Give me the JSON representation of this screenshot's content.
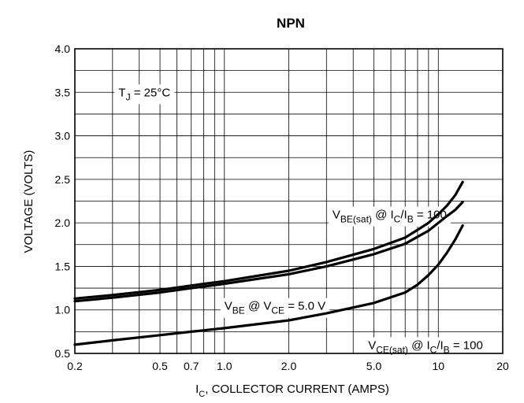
{
  "chart_data": {
    "type": "line",
    "title": "NPN",
    "xlabel": {
      "main": "I",
      "sub": "C",
      "rest": ", COLLECTOR CURRENT (AMPS)"
    },
    "ylabel": "VOLTAGE (VOLTS)",
    "x_scale": "log",
    "xlim": [
      0.2,
      20
    ],
    "ylim": [
      0.5,
      4.0
    ],
    "grid": true,
    "x_ticks": [
      {
        "value": 0.2,
        "label": "0.2"
      },
      {
        "value": 0.5,
        "label": "0.5"
      },
      {
        "value": 0.7,
        "label": "0.7"
      },
      {
        "value": 1.0,
        "label": "1.0"
      },
      {
        "value": 2.0,
        "label": "2.0"
      },
      {
        "value": 5.0,
        "label": "5.0"
      },
      {
        "value": 10,
        "label": "10"
      },
      {
        "value": 20,
        "label": "20"
      }
    ],
    "y_ticks": [
      {
        "value": 0.5,
        "label": "0.5"
      },
      {
        "value": 1.0,
        "label": "1.0"
      },
      {
        "value": 1.5,
        "label": "1.5"
      },
      {
        "value": 2.0,
        "label": "2.0"
      },
      {
        "value": 2.5,
        "label": "2.5"
      },
      {
        "value": 3.0,
        "label": "3.0"
      },
      {
        "value": 3.5,
        "label": "3.5"
      },
      {
        "value": 4.0,
        "label": "4.0"
      }
    ],
    "annotation": {
      "main": "T",
      "sub": "J",
      "rest": " = 25°C"
    },
    "series": [
      {
        "key": "vbe_sat",
        "label_parts": [
          {
            "t": "V"
          },
          {
            "t": "BE(sat)",
            "sub": true
          },
          {
            "t": " @ I"
          },
          {
            "t": "C",
            "sub": true
          },
          {
            "t": "/I"
          },
          {
            "t": "B",
            "sub": true
          },
          {
            "t": " = 100"
          }
        ],
        "x": [
          0.2,
          0.3,
          0.5,
          0.7,
          1.0,
          2.0,
          3.0,
          5.0,
          7.0,
          8.0,
          9.0,
          10,
          11,
          12,
          13
        ],
        "y": [
          1.13,
          1.17,
          1.23,
          1.28,
          1.33,
          1.45,
          1.55,
          1.7,
          1.83,
          1.92,
          2.0,
          2.1,
          2.2,
          2.32,
          2.47
        ]
      },
      {
        "key": "vbe",
        "label_parts": [
          {
            "t": "V"
          },
          {
            "t": "BE",
            "sub": true
          },
          {
            "t": " @ V"
          },
          {
            "t": "CE",
            "sub": true
          },
          {
            "t": " = 5.0 V"
          }
        ],
        "x": [
          0.2,
          0.3,
          0.5,
          0.7,
          1.0,
          2.0,
          3.0,
          5.0,
          7.0,
          8.0,
          9.0,
          10,
          11,
          12,
          13
        ],
        "y": [
          1.1,
          1.14,
          1.2,
          1.25,
          1.3,
          1.41,
          1.5,
          1.64,
          1.76,
          1.84,
          1.91,
          2.0,
          2.08,
          2.15,
          2.24
        ]
      },
      {
        "key": "vce_sat",
        "label_parts": [
          {
            "t": "V"
          },
          {
            "t": "CE(sat)",
            "sub": true
          },
          {
            "t": " @ I"
          },
          {
            "t": "C",
            "sub": true
          },
          {
            "t": "/I"
          },
          {
            "t": "B",
            "sub": true
          },
          {
            "t": " = 100"
          }
        ],
        "x": [
          0.2,
          0.3,
          0.5,
          0.7,
          1.0,
          2.0,
          3.0,
          5.0,
          7.0,
          8.0,
          9.0,
          10,
          11,
          12,
          13
        ],
        "y": [
          0.6,
          0.65,
          0.71,
          0.75,
          0.79,
          0.88,
          0.96,
          1.08,
          1.2,
          1.29,
          1.4,
          1.52,
          1.66,
          1.81,
          1.97
        ]
      }
    ]
  }
}
